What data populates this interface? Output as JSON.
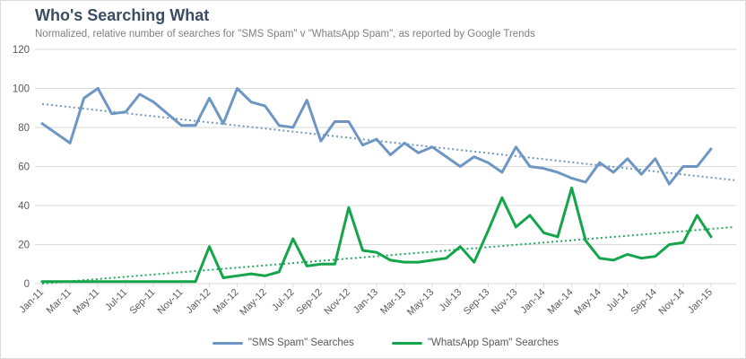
{
  "header": {
    "title": "Who's Searching What",
    "subtitle": "Normalized, relative number of searches for \"SMS Spam\" v \"WhatsApp Spam\", as reported by Google Trends"
  },
  "legend": {
    "sms_label": "\"SMS Spam\" Searches",
    "whatsapp_label": "\"WhatsApp Spam\" Searches"
  },
  "colors": {
    "sms_line": "#6e96c3",
    "whatsapp_line": "#14a54b",
    "sms_trend": "#7396bd",
    "whatsapp_trend": "#27a860",
    "gridline": "#d9d9d9",
    "axis_text": "#595959",
    "title_text": "#3a4d63",
    "subtitle_text": "#7f7f7f"
  },
  "chart_data": {
    "type": "line",
    "title": "Who's Searching What",
    "subtitle": "Normalized, relative number of searches for \"SMS Spam\" v \"WhatsApp Spam\", as reported by Google Trends",
    "x_interval": "monthly",
    "n_points": 49,
    "x_labels_shown": [
      "Jan-11",
      "Mar-11",
      "May-11",
      "Jul-11",
      "Sep-11",
      "Nov-11",
      "Jan-12",
      "Mar-12",
      "May-12",
      "Jul-12",
      "Sep-12",
      "Nov-12",
      "Jan-13",
      "Mar-13",
      "May-13",
      "Jul-13",
      "Sep-13",
      "Nov-13",
      "Jan-14",
      "Mar-14",
      "May-14",
      "Jul-14",
      "Sep-14",
      "Nov-14",
      "Jan-15"
    ],
    "label_every_n_points": 2,
    "ylim": [
      0,
      120
    ],
    "y_tick_step": 20,
    "grid": "horizontal",
    "legend_position": "bottom-center",
    "series": [
      {
        "name": "\"SMS Spam\" Searches",
        "color": "#6e96c3",
        "values": [
          82,
          77,
          72,
          95,
          100,
          87,
          88,
          97,
          93,
          87,
          81,
          81,
          95,
          82,
          100,
          93,
          91,
          81,
          80,
          94,
          73,
          83,
          83,
          71,
          74,
          66,
          72,
          67,
          70,
          65,
          60,
          65,
          62,
          57,
          70,
          60,
          59,
          57,
          54,
          52,
          62,
          57,
          64,
          56,
          64,
          51,
          60,
          60,
          69
        ]
      },
      {
        "name": "\"WhatsApp Spam\" Searches",
        "color": "#14a54b",
        "values": [
          1,
          1,
          1,
          1,
          1,
          1,
          1,
          1,
          1,
          1,
          1,
          1,
          19,
          3,
          4,
          5,
          4,
          6,
          23,
          9,
          10,
          10,
          39,
          17,
          16,
          12,
          11,
          11,
          12,
          13,
          19,
          11,
          27,
          44,
          29,
          35,
          26,
          24,
          49,
          22,
          13,
          12,
          15,
          13,
          14,
          20,
          21,
          35,
          24
        ]
      }
    ],
    "trendlines": [
      {
        "series": "\"SMS Spam\" Searches",
        "style": "dotted",
        "color": "#7396bd",
        "start_value": 92,
        "end_value": 53
      },
      {
        "series": "\"WhatsApp Spam\" Searches",
        "style": "dotted",
        "color": "#27a860",
        "start_value": 0,
        "end_value": 29
      }
    ]
  }
}
